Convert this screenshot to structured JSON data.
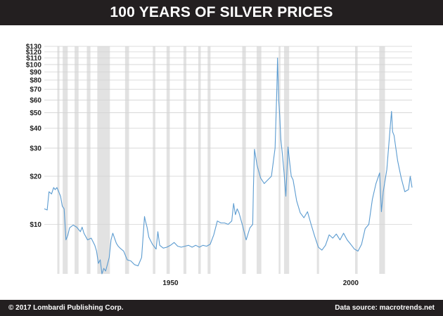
{
  "header": {
    "title": "100 YEARS OF SILVER PRICES"
  },
  "footer": {
    "copyright": "© 2017 Lombardi Publishing Corp.",
    "source": "Data source: macrotrends.net"
  },
  "colors": {
    "line": "#5b9bd0",
    "band": "#e2e2e2",
    "bar": "#231f20",
    "grid": "#d3d3d3"
  },
  "chart_data": {
    "type": "line",
    "title": "100 YEARS OF SILVER PRICES",
    "xlabel": "",
    "ylabel": "",
    "y_scale": "log",
    "xlim": [
      1915,
      2017
    ],
    "ylim": [
      4.9,
      130
    ],
    "grid": true,
    "legend": "none",
    "y_ticks": [
      {
        "value": 10,
        "label": "$10"
      },
      {
        "value": 20,
        "label": "$20"
      },
      {
        "value": 30,
        "label": "$30"
      },
      {
        "value": 40,
        "label": "$40"
      },
      {
        "value": 50,
        "label": "$50"
      },
      {
        "value": 60,
        "label": "$60"
      },
      {
        "value": 70,
        "label": "$70"
      },
      {
        "value": 80,
        "label": "$80"
      },
      {
        "value": 90,
        "label": "$90"
      },
      {
        "value": 100,
        "label": "$100"
      },
      {
        "value": 110,
        "label": "$110"
      },
      {
        "value": 120,
        "label": "$120"
      },
      {
        "value": 130,
        "label": "$130"
      }
    ],
    "x_ticks": [
      {
        "value": 1950,
        "label": "1950"
      },
      {
        "value": 2000,
        "label": "2000"
      }
    ],
    "recessions": [
      [
        1918.6,
        1919.2
      ],
      [
        1920.1,
        1921.5
      ],
      [
        1923.4,
        1924.5
      ],
      [
        1926.8,
        1927.8
      ],
      [
        1929.7,
        1933.2
      ],
      [
        1937.4,
        1938.5
      ],
      [
        1945.1,
        1945.8
      ],
      [
        1948.9,
        1949.8
      ],
      [
        1953.6,
        1954.4
      ],
      [
        1957.7,
        1958.4
      ],
      [
        1960.3,
        1961.1
      ],
      [
        1969.9,
        1970.9
      ],
      [
        1973.9,
        1975.2
      ],
      [
        1980.0,
        1980.5
      ],
      [
        1981.5,
        1982.9
      ],
      [
        1990.6,
        1991.2
      ],
      [
        2001.2,
        2001.9
      ],
      [
        2007.9,
        2009.5
      ]
    ],
    "series": [
      {
        "x": [
          1915.0,
          1915.8,
          1916.3,
          1917.0,
          1917.6,
          1918.0,
          1918.5,
          1919.0,
          1919.5,
          1920.0,
          1920.5,
          1921.0,
          1921.5,
          1922.0,
          1923.0,
          1924.0,
          1925.0,
          1925.5,
          1926.0,
          1927.0,
          1928.0,
          1929.0,
          1929.5,
          1930.0,
          1930.5,
          1931.0,
          1931.5,
          1932.0,
          1932.5,
          1933.0,
          1933.5,
          1934.0,
          1935.0,
          1935.5,
          1936.0,
          1937.0,
          1938.0,
          1939.0,
          1940.0,
          1941.0,
          1942.0,
          1942.8,
          1943.0,
          1943.5,
          1944.0,
          1945.0,
          1946.0,
          1946.5,
          1947.0,
          1948.0,
          1949.0,
          1950.0,
          1951.0,
          1952.0,
          1953.0,
          1954.0,
          1955.0,
          1956.0,
          1957.0,
          1958.0,
          1959.0,
          1960.0,
          1961.0,
          1962.0,
          1963.0,
          1964.0,
          1965.0,
          1966.0,
          1967.0,
          1967.5,
          1968.0,
          1968.5,
          1969.0,
          1970.0,
          1971.0,
          1972.0,
          1972.8,
          1973.0,
          1973.3,
          1974.0,
          1975.0,
          1976.0,
          1977.0,
          1978.0,
          1979.0,
          1979.5,
          1979.7,
          1980.0,
          1980.3,
          1980.6,
          1981.0,
          1981.5,
          1982.0,
          1982.6,
          1983.0,
          1983.5,
          1984.0,
          1985.0,
          1986.0,
          1987.0,
          1988.0,
          1989.0,
          1990.0,
          1991.0,
          1992.0,
          1993.0,
          1994.0,
          1995.0,
          1996.0,
          1997.0,
          1998.0,
          1999.0,
          2000.0,
          2001.0,
          2002.0,
          2003.0,
          2004.0,
          2005.0,
          2006.0,
          2007.0,
          2008.0,
          2008.5,
          2009.0,
          2010.0,
          2011.0,
          2011.3,
          2011.6,
          2012.0,
          2013.0,
          2013.5,
          2014.0,
          2015.0,
          2016.0,
          2016.5,
          2017.0
        ],
        "values": [
          12.5,
          12.3,
          16.0,
          15.5,
          17.0,
          16.5,
          17.0,
          16.0,
          15.0,
          13.0,
          12.5,
          8.0,
          8.5,
          9.5,
          9.9,
          9.6,
          9.0,
          9.6,
          8.8,
          8.0,
          8.2,
          7.4,
          6.8,
          5.7,
          6.0,
          4.9,
          5.3,
          5.1,
          5.6,
          6.2,
          8.0,
          8.8,
          7.6,
          7.3,
          7.1,
          6.8,
          6.0,
          5.9,
          5.6,
          5.5,
          6.2,
          11.2,
          10.6,
          9.6,
          8.3,
          7.5,
          7.0,
          9.0,
          7.4,
          7.1,
          7.2,
          7.4,
          7.7,
          7.3,
          7.2,
          7.3,
          7.4,
          7.2,
          7.4,
          7.2,
          7.4,
          7.3,
          7.5,
          8.6,
          10.5,
          10.2,
          10.2,
          10.0,
          10.5,
          13.5,
          11.5,
          12.5,
          11.8,
          9.8,
          8.0,
          9.5,
          10.0,
          17.0,
          29.5,
          23.5,
          19.5,
          18.0,
          19.0,
          20.0,
          30.0,
          70.0,
          110.0,
          60.0,
          48.0,
          34.0,
          28.0,
          21.0,
          15.0,
          30.5,
          25.0,
          20.0,
          19.0,
          14.0,
          11.8,
          11.0,
          12.0,
          10.0,
          8.4,
          7.2,
          6.9,
          7.4,
          8.6,
          8.2,
          8.7,
          8.0,
          8.8,
          8.0,
          7.5,
          7.0,
          6.8,
          7.5,
          9.4,
          10.0,
          14.4,
          18.0,
          21.0,
          12.0,
          16.0,
          22.0,
          42.0,
          51.0,
          38.0,
          36.0,
          25.0,
          22.0,
          19.5,
          16.0,
          16.5,
          20.0,
          17.0
        ]
      }
    ]
  }
}
